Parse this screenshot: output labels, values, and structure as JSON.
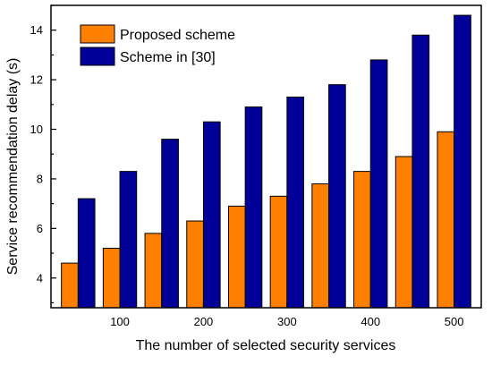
{
  "chart_data": {
    "type": "bar",
    "xlabel": "The number of selected security services",
    "ylabel": "Service recommendation delay (s)",
    "categories": [
      "50",
      "100",
      "150",
      "200",
      "250",
      "300",
      "350",
      "400",
      "450",
      "500"
    ],
    "x_tick_labels": [
      "100",
      "200",
      "300",
      "400",
      "500"
    ],
    "y_tick_labels": [
      "4",
      "6",
      "8",
      "10",
      "12",
      "14"
    ],
    "y_ticks": [
      4,
      6,
      8,
      10,
      12,
      14
    ],
    "ylim": [
      2.8,
      15.0
    ],
    "grid": false,
    "legend_position": "top-left",
    "series": [
      {
        "name": "Proposed scheme",
        "color": "#ff8000",
        "values": [
          4.6,
          5.2,
          5.8,
          6.3,
          6.9,
          7.3,
          7.8,
          8.3,
          8.9,
          9.9
        ]
      },
      {
        "name": "Scheme in [30]",
        "color": "#000099",
        "values": [
          7.2,
          8.3,
          9.6,
          10.3,
          10.9,
          11.3,
          11.8,
          12.8,
          13.8,
          14.6
        ]
      }
    ]
  }
}
